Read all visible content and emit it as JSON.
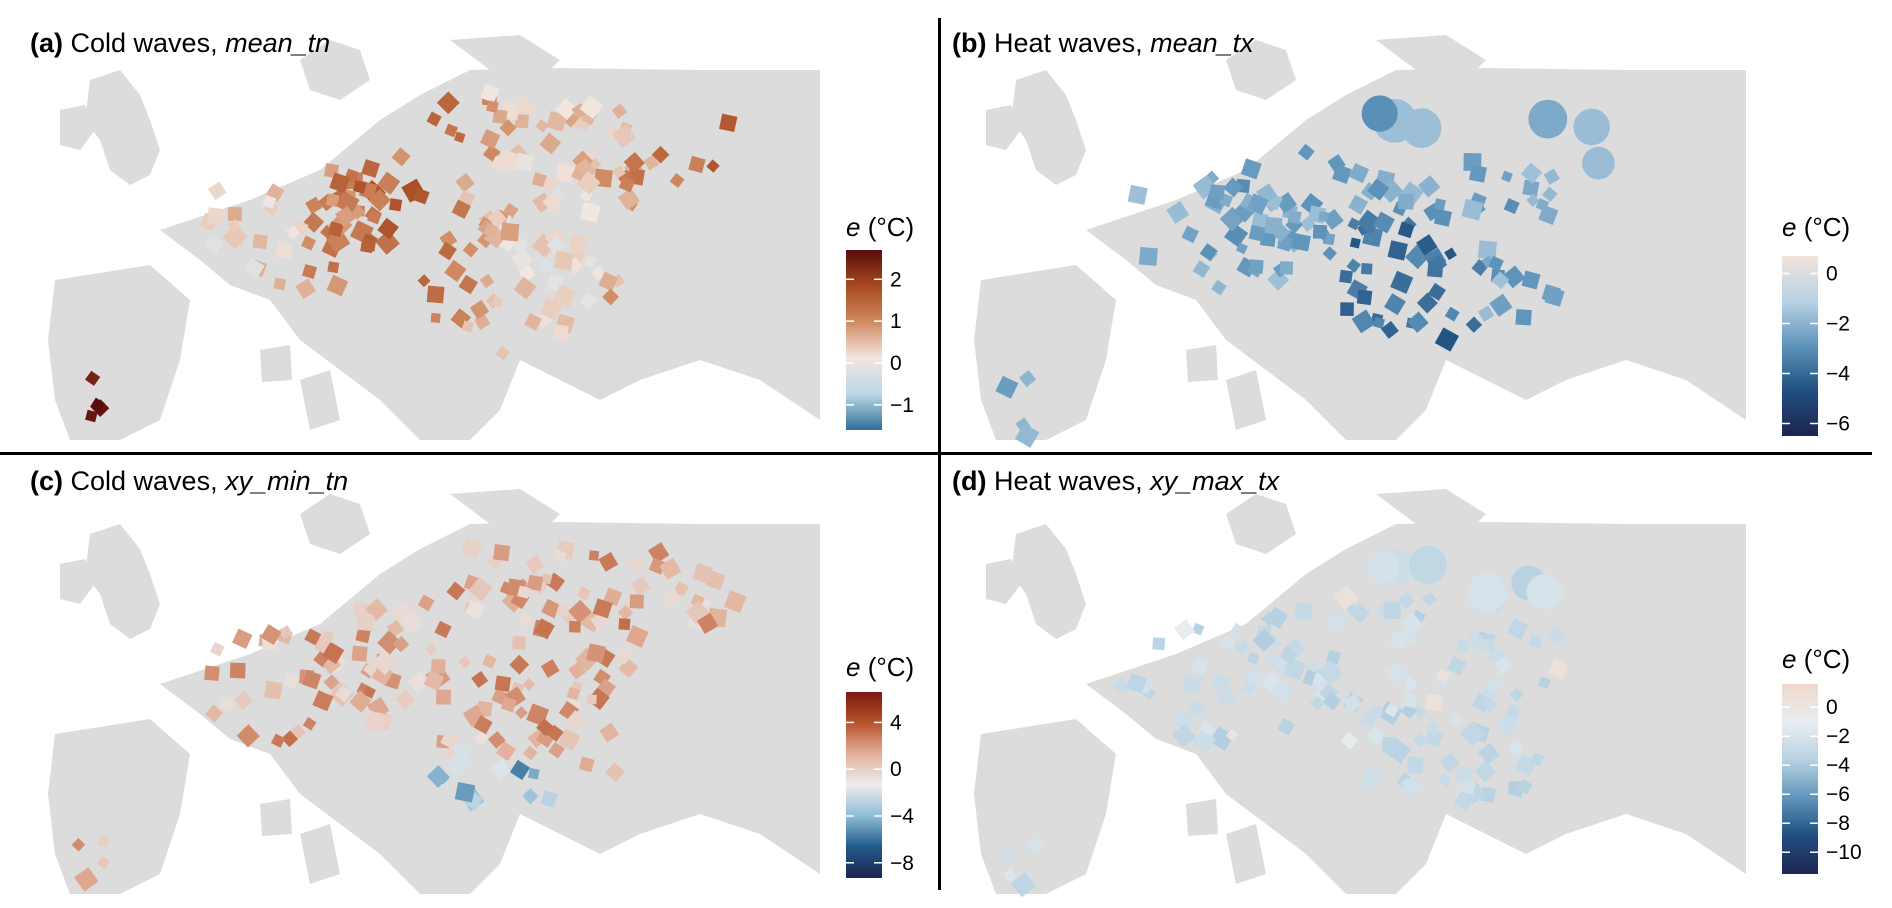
{
  "panels": [
    {
      "label": "(a)",
      "text": "Cold waves,",
      "variable": "mean_tn",
      "colorbar": {
        "title_var": "e",
        "title_unit": "(°C)",
        "ticks": [
          "2",
          "1",
          "0",
          "−1"
        ],
        "tick_values": [
          2,
          1,
          0,
          -1
        ],
        "range": [
          -1.6,
          2.7
        ],
        "colors": [
          "#2f6f98",
          "#bcd7e6",
          "#f2e6e0",
          "#d08a62",
          "#a84a22",
          "#5a0c0c"
        ]
      }
    },
    {
      "label": "(b)",
      "text": "Heat waves,",
      "variable": "mean_tx",
      "colorbar": {
        "title_var": "e",
        "title_unit": "(°C)",
        "ticks": [
          "0",
          "−2",
          "−4",
          "−6"
        ],
        "tick_values": [
          0,
          -2,
          -4,
          -6
        ],
        "range": [
          -6.5,
          0.7
        ],
        "colors": [
          "#1f2450",
          "#1f4f7f",
          "#5e94bb",
          "#b8d2e2",
          "#f3e3dc"
        ]
      }
    },
    {
      "label": "(c)",
      "text": "Cold waves,",
      "variable": "xy_min_tn",
      "colorbar": {
        "title_var": "e",
        "title_unit": "(°C)",
        "ticks": [
          "4",
          "0",
          "−4",
          "−8"
        ],
        "tick_values": [
          4,
          0,
          -4,
          -8
        ],
        "range": [
          -9.3,
          6.6
        ],
        "colors": [
          "#20224f",
          "#1f5b8a",
          "#8fbcd6",
          "#ecedee",
          "#e2b19a",
          "#b7532b",
          "#7a1a12"
        ]
      }
    },
    {
      "label": "(d)",
      "text": "Heat waves,",
      "variable": "xy_max_tx",
      "colorbar": {
        "title_var": "e",
        "title_unit": "(°C)",
        "ticks": [
          "0",
          "−2",
          "−4",
          "−6",
          "−8",
          "−10"
        ],
        "tick_values": [
          0,
          -2,
          -4,
          -6,
          -8,
          -10
        ],
        "range": [
          -11.5,
          1.6
        ],
        "colors": [
          "#1f2450",
          "#1f4f7f",
          "#5e94bb",
          "#b8d2e2",
          "#e9edf0",
          "#f0d8cc"
        ]
      }
    }
  ]
}
